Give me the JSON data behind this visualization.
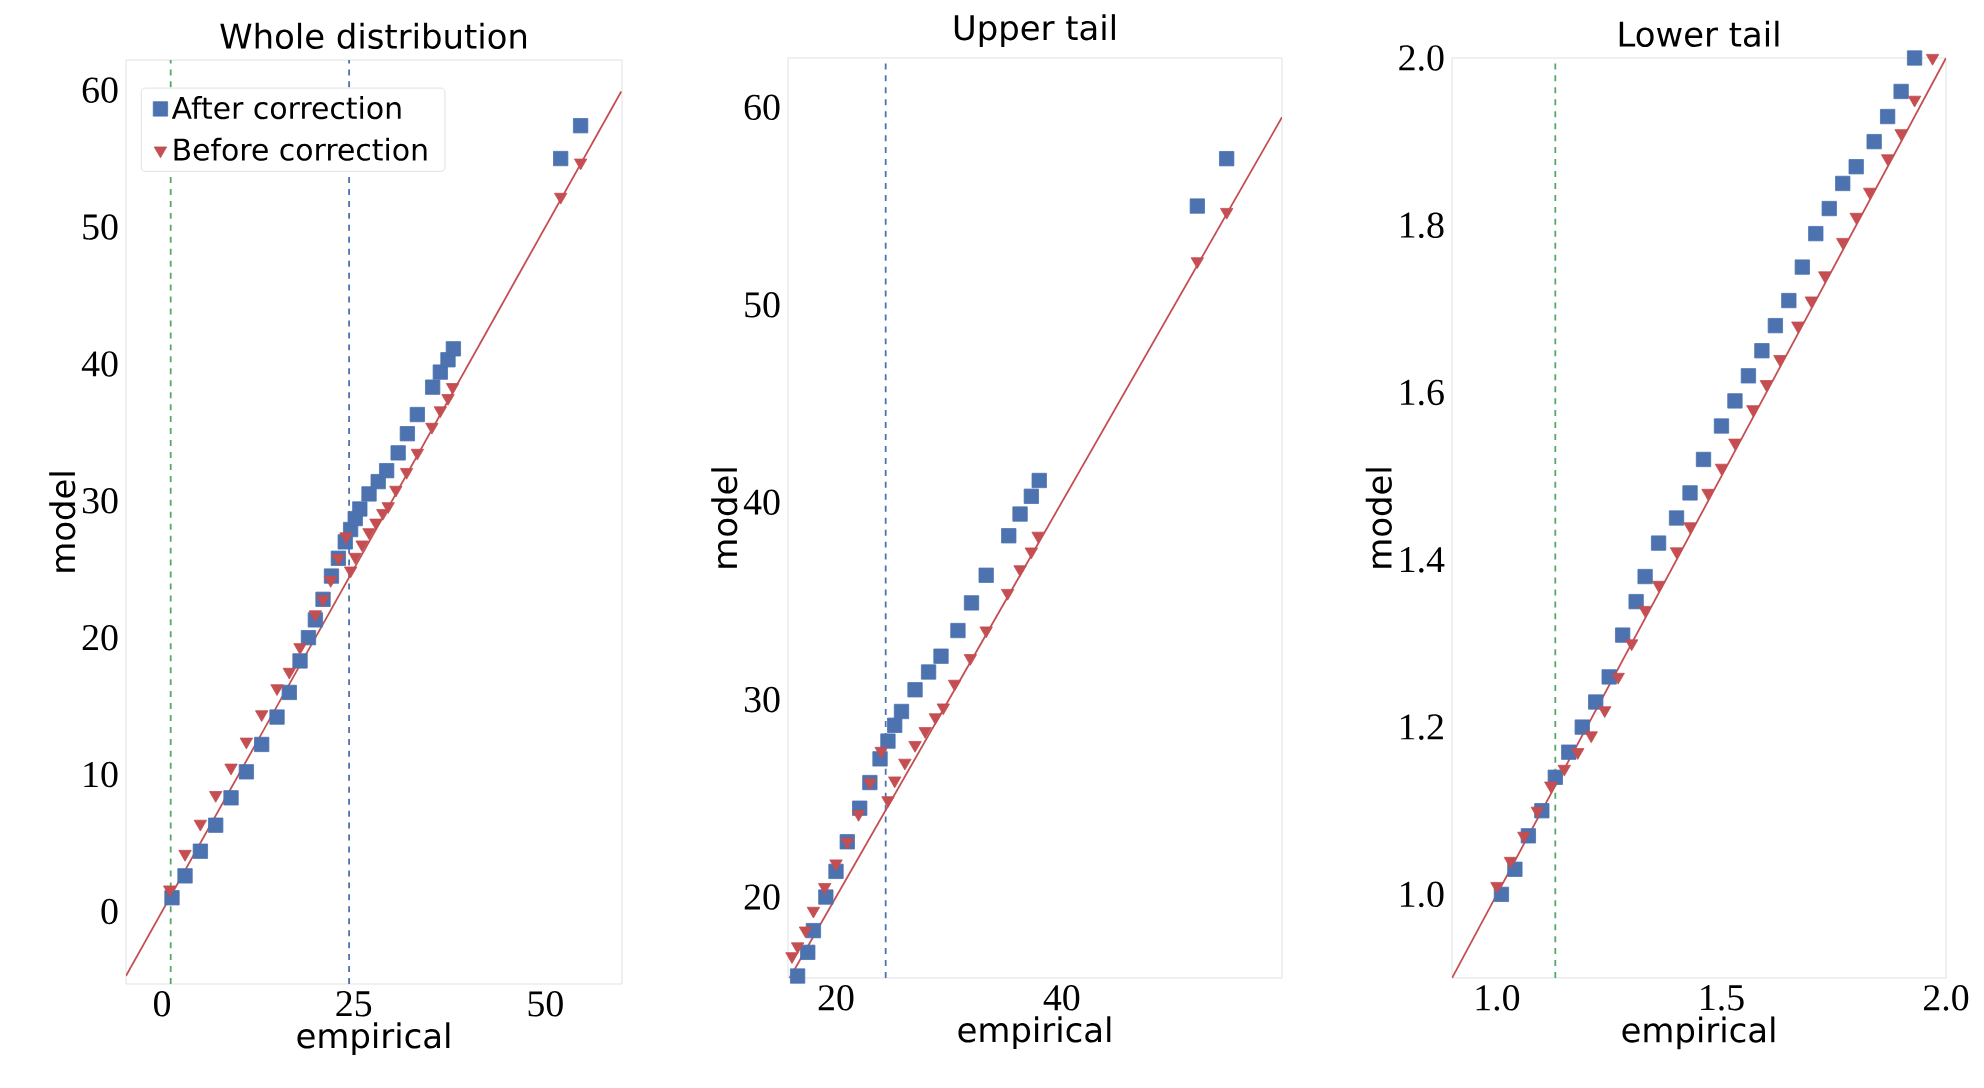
{
  "chart_data": [
    {
      "type": "scatter",
      "title": "Whole distribution",
      "xlabel": "empirical",
      "ylabel": "model",
      "xlim": [
        -4.7,
        60
      ],
      "ylim": [
        -5.3,
        62.2
      ],
      "xticks": [
        0,
        25,
        50
      ],
      "yticks": [
        0,
        10,
        20,
        30,
        40,
        50,
        60
      ],
      "legend": "top left",
      "series": [
        {
          "name": "After correction",
          "color": "#4c72b0",
          "marker": "square",
          "x": [
            1.3,
            3,
            5,
            7,
            9,
            11,
            13,
            15,
            16.6,
            18,
            19.1,
            20,
            21,
            22.1,
            23,
            23.9,
            24.6,
            25.2,
            25.8,
            27.0,
            28.2,
            29.3,
            30.5,
            30.8,
            32.0,
            33.3,
            35.3,
            36.3,
            37.3,
            38.0,
            52.0,
            54.6
          ],
          "values": [
            1.0,
            2.6,
            4.4,
            6.3,
            8.3,
            10.2,
            12.2,
            14.2,
            16.0,
            18.3,
            20.0,
            21.3,
            22.8,
            24.5,
            25.8,
            27.0,
            27.9,
            28.7,
            29.4,
            30.5,
            31.4,
            32.2,
            null,
            33.5,
            34.9,
            36.3,
            38.3,
            39.4,
            40.3,
            41.1,
            55.0,
            57.4
          ]
        },
        {
          "name": "Before correction",
          "color": "#c44e52",
          "marker": "triangle",
          "x": [
            1,
            3,
            5,
            7,
            9,
            11,
            13,
            15,
            16.6,
            18,
            20,
            21,
            22,
            23,
            24,
            24.6,
            25.2,
            26.1,
            27.0,
            27.9,
            28.8,
            29.5,
            30.5,
            31.9,
            33.3,
            35.2,
            36.3,
            37.3,
            37.9,
            52.0,
            54.6
          ],
          "values": [
            1.6,
            4.2,
            6.4,
            8.5,
            10.5,
            12.4,
            14.4,
            16.3,
            17.5,
            19.3,
            21.7,
            22.8,
            24.2,
            25.8,
            27.4,
            24.9,
            25.9,
            26.8,
            27.7,
            28.4,
            29.1,
            29.6,
            30.8,
            32.1,
            33.5,
            35.4,
            36.6,
            37.5,
            38.3,
            52.2,
            54.7
          ]
        },
        {
          "type": "line",
          "color": "#c44e52",
          "x": [
            -4.7,
            59.9
          ],
          "values": [
            -4.7,
            59.9
          ]
        }
      ],
      "ref_lines": [
        {
          "axis": "x",
          "value": 1.13,
          "color": "#55a868",
          "line_style": "dashed"
        },
        {
          "axis": "x",
          "value": 24.4,
          "color": "#4c72b0",
          "line_style": "dashed"
        }
      ]
    },
    {
      "type": "scatter",
      "title": "Upper tail",
      "xlabel": "empirical",
      "ylabel": "model",
      "xlim": [
        15.75,
        59.5
      ],
      "ylim": [
        15.9,
        62.5
      ],
      "xticks": [
        20,
        40
      ],
      "yticks": [
        20,
        30,
        40,
        50,
        60
      ],
      "series": [
        {
          "color": "#4c72b0",
          "marker": "square",
          "x": [
            16.6,
            17.5,
            18,
            19.1,
            20,
            21,
            22.1,
            23,
            23.9,
            24.6,
            25.2,
            25.8,
            27.0,
            28.2,
            29.3,
            30.5,
            30.8,
            32.0,
            33.3,
            35.3,
            36.3,
            37.3,
            38.0,
            52.0,
            54.6
          ],
          "values": [
            16.0,
            17.2,
            18.3,
            20.0,
            21.3,
            22.8,
            24.5,
            25.8,
            27.0,
            27.9,
            28.7,
            29.4,
            30.5,
            31.4,
            32.2,
            null,
            33.5,
            34.9,
            36.3,
            38.3,
            39.4,
            40.3,
            41.1,
            55.0,
            57.4
          ]
        },
        {
          "color": "#c44e52",
          "marker": "triangle",
          "x": [
            16.1,
            16.6,
            17.3,
            18,
            19,
            20,
            21,
            22,
            23,
            24,
            24.6,
            25.2,
            26.1,
            27.0,
            27.9,
            28.8,
            29.5,
            30.5,
            31.9,
            33.3,
            35.2,
            36.3,
            37.3,
            37.9,
            52.0,
            54.6
          ],
          "values": [
            17.0,
            17.5,
            18.3,
            19.3,
            20.5,
            21.7,
            22.8,
            24.2,
            25.8,
            27.4,
            24.9,
            25.9,
            26.8,
            27.7,
            28.4,
            29.1,
            29.6,
            30.8,
            32.1,
            33.5,
            35.4,
            36.6,
            37.5,
            38.3,
            52.2,
            54.7
          ]
        },
        {
          "type": "line",
          "color": "#c44e52",
          "x": [
            15.9,
            59.5
          ],
          "values": [
            15.9,
            59.5
          ]
        }
      ],
      "ref_lines": [
        {
          "axis": "x",
          "value": 24.4,
          "color": "#4c72b0",
          "line_style": "dashed"
        }
      ]
    },
    {
      "type": "scatter",
      "title": "Lower tail",
      "xlabel": "empirical",
      "ylabel": "model",
      "xlim": [
        0.9,
        2.0
      ],
      "ylim": [
        0.9,
        2.0
      ],
      "xticks": [
        {
          "value": 1,
          "label": "1.0"
        },
        1.5,
        {
          "value": 2,
          "label": "2.0"
        }
      ],
      "yticks": [
        {
          "value": 1,
          "label": "1.0"
        },
        1.2,
        1.4,
        1.6,
        1.8,
        {
          "value": 2,
          "label": "2.0"
        }
      ],
      "series": [
        {
          "color": "#4c72b0",
          "marker": "square",
          "x": [
            1.01,
            1.04,
            1.07,
            1.1,
            1.13,
            1.16,
            1.19,
            1.22,
            1.25,
            1.28,
            1.31,
            1.33,
            1.36,
            1.4,
            1.43,
            1.46,
            1.5,
            1.53,
            1.56,
            1.59,
            1.62,
            1.65,
            1.68,
            1.71,
            1.74,
            1.77,
            1.8,
            1.84,
            1.87,
            1.9,
            1.93
          ],
          "values": [
            1.0,
            1.03,
            1.07,
            1.1,
            1.14,
            1.17,
            1.2,
            1.23,
            1.26,
            1.31,
            1.35,
            1.38,
            1.42,
            1.45,
            1.48,
            1.52,
            1.56,
            1.59,
            1.62,
            1.65,
            1.68,
            1.71,
            1.75,
            1.79,
            1.82,
            1.85,
            1.87,
            1.9,
            1.93,
            1.96,
            2.0
          ]
        },
        {
          "color": "#c44e52",
          "marker": "triangle",
          "x": [
            1.0,
            1.03,
            1.06,
            1.09,
            1.12,
            1.15,
            1.18,
            1.21,
            1.24,
            1.27,
            1.3,
            1.33,
            1.36,
            1.4,
            1.43,
            1.47,
            1.5,
            1.53,
            1.57,
            1.6,
            1.63,
            1.67,
            1.7,
            1.73,
            1.77,
            1.8,
            1.83,
            1.87,
            1.9,
            1.93,
            1.97
          ],
          "values": [
            1.01,
            1.04,
            1.07,
            1.1,
            1.13,
            1.15,
            1.17,
            1.19,
            1.22,
            1.26,
            1.3,
            1.34,
            1.37,
            1.41,
            1.44,
            1.48,
            1.51,
            1.54,
            1.58,
            1.61,
            1.64,
            1.68,
            1.71,
            1.74,
            1.78,
            1.81,
            1.84,
            1.88,
            1.91,
            1.95,
            2.0
          ]
        },
        {
          "type": "line",
          "color": "#c44e52",
          "x": [
            0.9,
            2.0
          ],
          "values": [
            0.9,
            2.0
          ]
        }
      ],
      "ref_lines": [
        {
          "axis": "x",
          "value": 1.13,
          "color": "#55a868",
          "line_style": "dashed"
        }
      ]
    }
  ]
}
